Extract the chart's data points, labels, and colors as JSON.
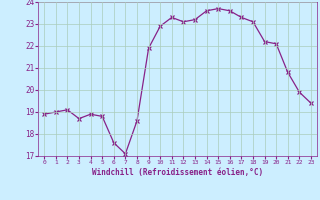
{
  "x": [
    0,
    1,
    2,
    3,
    4,
    5,
    6,
    7,
    8,
    9,
    10,
    11,
    12,
    13,
    14,
    15,
    16,
    17,
    18,
    19,
    20,
    21,
    22,
    23
  ],
  "y": [
    18.9,
    19.0,
    19.1,
    18.7,
    18.9,
    18.8,
    17.6,
    17.1,
    18.6,
    21.9,
    22.9,
    23.3,
    23.1,
    23.2,
    23.6,
    23.7,
    23.6,
    23.3,
    23.1,
    22.2,
    22.1,
    20.8,
    19.9,
    19.4
  ],
  "line_color": "#882288",
  "marker_color": "#882288",
  "bg_color": "#cceeff",
  "grid_color": "#aaccbb",
  "xlabel": "Windchill (Refroidissement éolien,°C)",
  "xlabel_color": "#882288",
  "ylim": [
    17,
    24
  ],
  "xlim_min": -0.5,
  "xlim_max": 23.5,
  "yticks": [
    17,
    18,
    19,
    20,
    21,
    22,
    23,
    24
  ],
  "xticks": [
    0,
    1,
    2,
    3,
    4,
    5,
    6,
    7,
    8,
    9,
    10,
    11,
    12,
    13,
    14,
    15,
    16,
    17,
    18,
    19,
    20,
    21,
    22,
    23
  ],
  "tick_color": "#882288",
  "ytick_fontsize": 5.5,
  "xtick_fontsize": 4.5,
  "xlabel_fontsize": 5.5
}
